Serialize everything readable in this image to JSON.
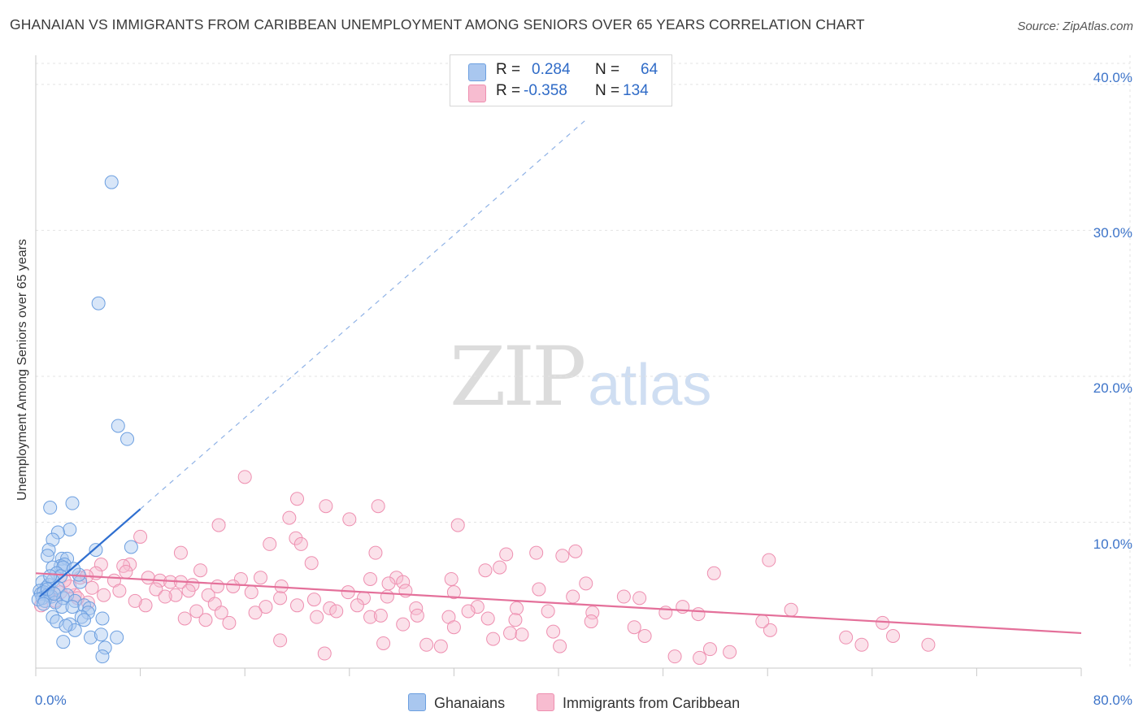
{
  "title": "GHANAIAN VS IMMIGRANTS FROM CARIBBEAN UNEMPLOYMENT AMONG SENIORS OVER 65 YEARS CORRELATION CHART",
  "source": "Source: ZipAtlas.com",
  "watermark": {
    "part1": "ZIP",
    "part2": "atlas"
  },
  "stats": {
    "r_label": "R =",
    "n_label": "N =",
    "series1": {
      "r": "0.284",
      "n": "64"
    },
    "series2": {
      "r": "-0.358",
      "n": "134"
    }
  },
  "colors": {
    "ghanaian_fill": "#a9c7ef",
    "ghanaian_stroke": "#6c9fe0",
    "ghanaian_line": "#2f6fd0",
    "caribbean_fill": "#f7bcd0",
    "caribbean_stroke": "#ee8fb0",
    "caribbean_line": "#e4709a",
    "tick_label": "#3d74c9"
  },
  "chart_data": {
    "type": "scatter",
    "title": "GHANAIAN VS IMMIGRANTS FROM CARIBBEAN UNEMPLOYMENT AMONG SENIORS OVER 65 YEARS CORRELATION CHART",
    "xlabel": "",
    "ylabel": "Unemployment Among Seniors over 65 years",
    "xlim": [
      0,
      80
    ],
    "ylim": [
      0,
      42
    ],
    "x_tick_labels": [
      "0.0%",
      "80.0%"
    ],
    "y_ticks": [
      10,
      20,
      30,
      40
    ],
    "y_tick_labels": [
      "10.0%",
      "20.0%",
      "30.0%",
      "40.0%"
    ],
    "grid": true,
    "legend": [
      "Ghanaians",
      "Immigrants from Caribbean"
    ],
    "series": [
      {
        "name": "Ghanaians",
        "r": 0.284,
        "n": 64,
        "trend_solid": [
          [
            0.3,
            4.9
          ],
          [
            8.0,
            10.9
          ]
        ],
        "trend_dashed": [
          [
            8.0,
            10.9
          ],
          [
            42.0,
            37.5
          ]
        ],
        "points": [
          [
            5.8,
            33.3
          ],
          [
            4.8,
            25.0
          ],
          [
            6.3,
            16.6
          ],
          [
            7.0,
            15.7
          ],
          [
            2.8,
            11.3
          ],
          [
            1.1,
            11.0
          ],
          [
            2.6,
            9.5
          ],
          [
            1.7,
            9.3
          ],
          [
            1.3,
            8.8
          ],
          [
            7.3,
            8.3
          ],
          [
            4.6,
            8.1
          ],
          [
            1.0,
            8.1
          ],
          [
            0.9,
            7.7
          ],
          [
            2.0,
            7.5
          ],
          [
            2.4,
            7.5
          ],
          [
            1.9,
            7.0
          ],
          [
            1.3,
            6.9
          ],
          [
            2.2,
            7.1
          ],
          [
            2.1,
            6.9
          ],
          [
            1.6,
            6.5
          ],
          [
            1.9,
            6.3
          ],
          [
            0.5,
            5.9
          ],
          [
            0.8,
            5.5
          ],
          [
            1.0,
            5.7
          ],
          [
            1.3,
            6.0
          ],
          [
            3.4,
            5.9
          ],
          [
            1.7,
            5.5
          ],
          [
            0.3,
            5.3
          ],
          [
            0.4,
            5.1
          ],
          [
            0.6,
            5.2
          ],
          [
            0.9,
            5.0
          ],
          [
            1.2,
            4.9
          ],
          [
            0.5,
            4.8
          ],
          [
            0.2,
            4.7
          ],
          [
            0.7,
            4.6
          ],
          [
            1.5,
            4.5
          ],
          [
            2.1,
            4.8
          ],
          [
            2.4,
            5.0
          ],
          [
            2.0,
            4.2
          ],
          [
            3.0,
            4.6
          ],
          [
            3.7,
            4.3
          ],
          [
            4.1,
            4.1
          ],
          [
            4.0,
            3.8
          ],
          [
            2.8,
            4.2
          ],
          [
            1.3,
            3.5
          ],
          [
            1.6,
            3.2
          ],
          [
            5.1,
            3.4
          ],
          [
            3.5,
            3.5
          ],
          [
            3.7,
            3.3
          ],
          [
            2.6,
            3.0
          ],
          [
            3.0,
            2.6
          ],
          [
            2.3,
            2.9
          ],
          [
            4.2,
            2.1
          ],
          [
            6.2,
            2.1
          ],
          [
            5.0,
            2.3
          ],
          [
            2.1,
            1.8
          ],
          [
            5.3,
            1.4
          ],
          [
            5.1,
            0.8
          ],
          [
            0.9,
            5.4
          ],
          [
            1.4,
            5.1
          ],
          [
            0.6,
            4.4
          ],
          [
            3.3,
            6.4
          ],
          [
            2.9,
            6.8
          ],
          [
            1.1,
            6.3
          ]
        ]
      },
      {
        "name": "Immigrants from Caribbean",
        "r": -0.358,
        "n": 134,
        "trend_solid": [
          [
            0.0,
            6.5
          ],
          [
            80.0,
            2.4
          ]
        ],
        "points": [
          [
            16.0,
            13.1
          ],
          [
            20.0,
            11.6
          ],
          [
            22.2,
            11.1
          ],
          [
            26.2,
            11.1
          ],
          [
            24.0,
            10.2
          ],
          [
            19.4,
            10.3
          ],
          [
            14.0,
            9.8
          ],
          [
            32.3,
            9.8
          ],
          [
            8.0,
            9.0
          ],
          [
            19.9,
            8.9
          ],
          [
            20.3,
            8.5
          ],
          [
            17.9,
            8.5
          ],
          [
            26.0,
            7.9
          ],
          [
            38.3,
            7.9
          ],
          [
            41.3,
            8.0
          ],
          [
            11.1,
            7.9
          ],
          [
            36.0,
            7.8
          ],
          [
            40.3,
            7.7
          ],
          [
            56.1,
            7.4
          ],
          [
            21.1,
            7.2
          ],
          [
            7.2,
            7.1
          ],
          [
            5.0,
            7.1
          ],
          [
            6.7,
            7.0
          ],
          [
            35.5,
            6.9
          ],
          [
            34.4,
            6.7
          ],
          [
            12.6,
            6.7
          ],
          [
            6.9,
            6.6
          ],
          [
            51.9,
            6.5
          ],
          [
            4.6,
            6.5
          ],
          [
            8.6,
            6.2
          ],
          [
            17.2,
            6.2
          ],
          [
            15.7,
            6.1
          ],
          [
            25.6,
            6.1
          ],
          [
            27.6,
            6.2
          ],
          [
            31.8,
            6.1
          ],
          [
            3.4,
            6.2
          ],
          [
            3.9,
            6.3
          ],
          [
            6.0,
            6.0
          ],
          [
            9.5,
            6.0
          ],
          [
            10.3,
            5.9
          ],
          [
            11.1,
            5.9
          ],
          [
            12.0,
            5.7
          ],
          [
            13.9,
            5.6
          ],
          [
            15.1,
            5.6
          ],
          [
            18.8,
            5.6
          ],
          [
            27.0,
            5.8
          ],
          [
            28.1,
            5.9
          ],
          [
            42.1,
            5.8
          ],
          [
            4.3,
            5.5
          ],
          [
            6.4,
            5.3
          ],
          [
            9.2,
            5.4
          ],
          [
            11.7,
            5.3
          ],
          [
            16.5,
            5.2
          ],
          [
            23.9,
            5.2
          ],
          [
            28.3,
            5.3
          ],
          [
            32.0,
            5.2
          ],
          [
            38.5,
            5.4
          ],
          [
            3.0,
            5.0
          ],
          [
            5.2,
            5.0
          ],
          [
            10.7,
            5.0
          ],
          [
            13.2,
            5.0
          ],
          [
            18.7,
            4.8
          ],
          [
            21.3,
            4.7
          ],
          [
            25.1,
            4.8
          ],
          [
            26.9,
            4.9
          ],
          [
            41.1,
            4.9
          ],
          [
            45.0,
            4.9
          ],
          [
            46.2,
            4.8
          ],
          [
            1.5,
            4.6
          ],
          [
            4.0,
            4.5
          ],
          [
            8.4,
            4.3
          ],
          [
            13.7,
            4.4
          ],
          [
            17.6,
            4.2
          ],
          [
            20.0,
            4.3
          ],
          [
            22.5,
            4.1
          ],
          [
            24.6,
            4.3
          ],
          [
            29.1,
            4.1
          ],
          [
            33.8,
            4.2
          ],
          [
            36.8,
            4.1
          ],
          [
            12.3,
            3.9
          ],
          [
            14.2,
            3.8
          ],
          [
            16.8,
            3.8
          ],
          [
            23.0,
            3.9
          ],
          [
            29.2,
            3.6
          ],
          [
            33.1,
            3.9
          ],
          [
            39.2,
            3.9
          ],
          [
            42.6,
            3.8
          ],
          [
            48.2,
            3.8
          ],
          [
            50.7,
            3.7
          ],
          [
            11.4,
            3.4
          ],
          [
            13.0,
            3.3
          ],
          [
            21.5,
            3.5
          ],
          [
            25.6,
            3.5
          ],
          [
            26.4,
            3.6
          ],
          [
            31.6,
            3.5
          ],
          [
            34.6,
            3.4
          ],
          [
            42.5,
            3.2
          ],
          [
            28.1,
            3.0
          ],
          [
            32.0,
            2.8
          ],
          [
            36.3,
            2.4
          ],
          [
            37.2,
            2.3
          ],
          [
            39.6,
            2.5
          ],
          [
            45.8,
            2.8
          ],
          [
            56.2,
            2.6
          ],
          [
            62.0,
            2.1
          ],
          [
            65.6,
            2.2
          ],
          [
            18.7,
            1.9
          ],
          [
            26.6,
            1.7
          ],
          [
            29.9,
            1.6
          ],
          [
            35.0,
            2.0
          ],
          [
            40.1,
            1.5
          ],
          [
            53.1,
            1.1
          ],
          [
            51.6,
            1.3
          ],
          [
            63.2,
            1.6
          ],
          [
            68.3,
            1.6
          ],
          [
            22.1,
            1.0
          ],
          [
            31.0,
            1.5
          ],
          [
            46.6,
            2.2
          ],
          [
            48.9,
            0.8
          ],
          [
            50.8,
            0.7
          ],
          [
            1.9,
            5.2
          ],
          [
            2.6,
            5.6
          ],
          [
            3.2,
            4.8
          ],
          [
            7.6,
            4.6
          ],
          [
            9.9,
            4.9
          ],
          [
            14.8,
            3.1
          ],
          [
            36.7,
            3.3
          ],
          [
            49.5,
            4.2
          ],
          [
            55.6,
            3.2
          ],
          [
            64.8,
            3.1
          ],
          [
            0.4,
            4.3
          ],
          [
            1.0,
            5.0
          ],
          [
            2.2,
            6.0
          ],
          [
            57.8,
            4.0
          ]
        ]
      }
    ]
  }
}
